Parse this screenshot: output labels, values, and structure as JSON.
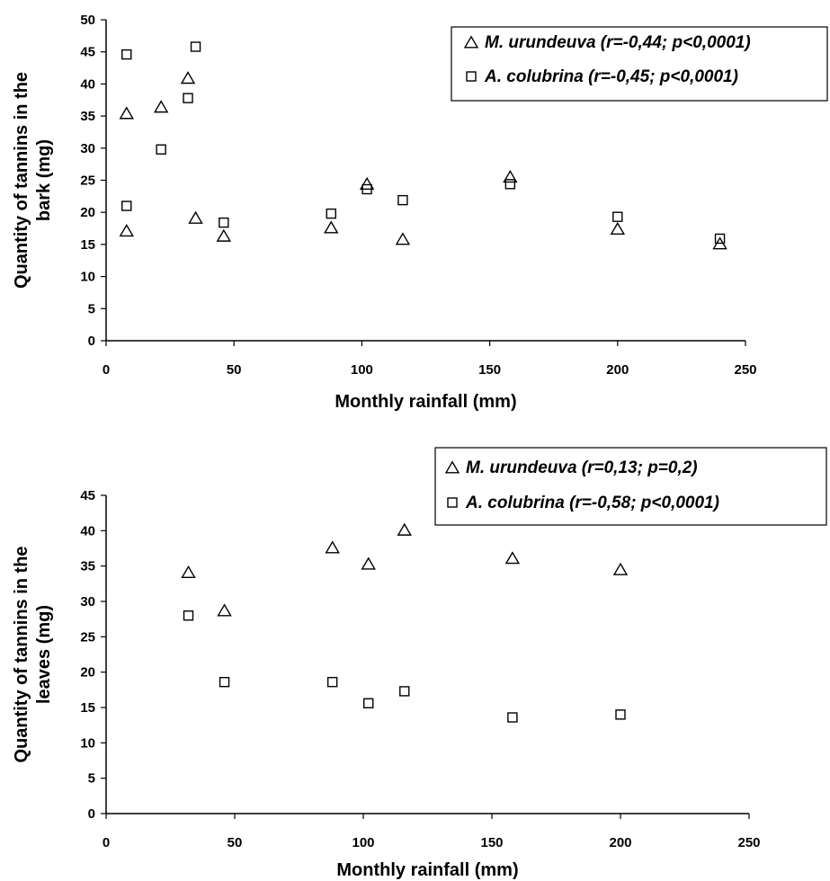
{
  "chart_data": [
    {
      "type": "scatter",
      "xlabel": "Monthly rainfall (mm)",
      "ylabel_lines": [
        "Quantity of tannins in the",
        "bark (mg)"
      ],
      "xlim": [
        0,
        250
      ],
      "ylim": [
        0,
        50
      ],
      "xticks": [
        "0",
        "50",
        "100",
        "150",
        "200",
        "250"
      ],
      "yticks": [
        "0",
        "5",
        "10",
        "15",
        "20",
        "25",
        "30",
        "35",
        "40",
        "45",
        "50"
      ],
      "grid": false,
      "legend_position": "top-right",
      "series": [
        {
          "name": "M. urundeuva (r=-0,44; p<0,0001)",
          "marker": "triangle",
          "points": [
            [
              8,
              17
            ],
            [
              8,
              35.3
            ],
            [
              21.5,
              36.3
            ],
            [
              32,
              40.8
            ],
            [
              35,
              19
            ],
            [
              46,
              16.2
            ],
            [
              88,
              17.5
            ],
            [
              102,
              24.3
            ],
            [
              116,
              15.7
            ],
            [
              158,
              25.4
            ],
            [
              200,
              17.3
            ],
            [
              240,
              15
            ]
          ]
        },
        {
          "name": "A. colubrina (r=-0,45; p<0,0001)",
          "marker": "square",
          "points": [
            [
              8,
              21
            ],
            [
              8,
              44.6
            ],
            [
              21.5,
              29.8
            ],
            [
              32,
              37.8
            ],
            [
              35,
              45.8
            ],
            [
              46,
              18.4
            ],
            [
              88,
              19.8
            ],
            [
              102,
              23.6
            ],
            [
              116,
              21.9
            ],
            [
              158,
              24.4
            ],
            [
              200,
              19.3
            ],
            [
              240,
              15.9
            ]
          ]
        }
      ]
    },
    {
      "type": "scatter",
      "xlabel": "Monthly rainfall (mm)",
      "ylabel_lines": [
        "Quantity of tannins in the",
        "leaves (mg)"
      ],
      "xlim": [
        0,
        250
      ],
      "ylim": [
        0,
        45
      ],
      "xticks": [
        "0",
        "50",
        "100",
        "150",
        "200",
        "250"
      ],
      "yticks": [
        "0",
        "5",
        "10",
        "15",
        "20",
        "25",
        "30",
        "35",
        "40",
        "45"
      ],
      "grid": false,
      "legend_position": "top-right",
      "series": [
        {
          "name": "M. urundeuva (r=0,13; p=0,2)",
          "marker": "triangle",
          "points": [
            [
              32,
              34
            ],
            [
              46,
              28.6
            ],
            [
              88,
              37.5
            ],
            [
              102,
              35.2
            ],
            [
              116,
              40
            ],
            [
              158,
              36
            ],
            [
              200,
              34.4
            ]
          ]
        },
        {
          "name": "A. colubrina (r=-0,58; p<0,0001)",
          "marker": "square",
          "points": [
            [
              32,
              28
            ],
            [
              46,
              18.6
            ],
            [
              88,
              18.6
            ],
            [
              102,
              15.6
            ],
            [
              116,
              17.3
            ],
            [
              158,
              13.6
            ],
            [
              200,
              14
            ]
          ]
        }
      ]
    }
  ]
}
